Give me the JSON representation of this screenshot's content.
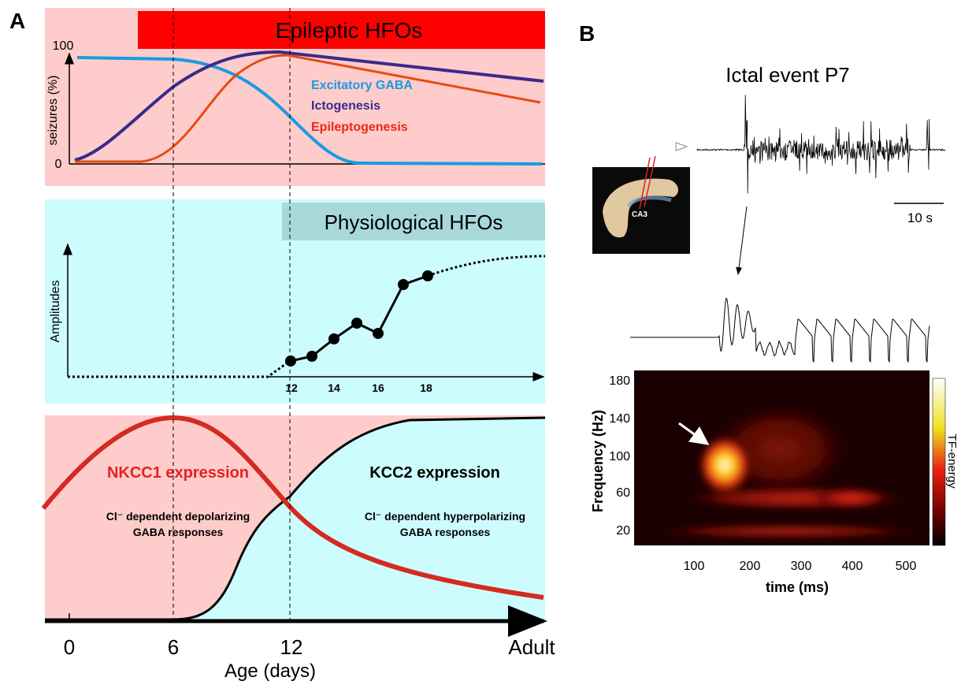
{
  "panel_a": {
    "label": "A",
    "epileptic": {
      "title": "Epileptic HFOs",
      "y_label": "seizures  (%)",
      "y_ticks": [
        "100",
        "0"
      ],
      "legend": [
        "Excitatory GABA",
        "Ictogenesis",
        "Epileptogenesis"
      ]
    },
    "physiological": {
      "title": "Physiological HFOs",
      "y_label": "Amplitudes",
      "x_ticks": [
        "12",
        "14",
        "16",
        "18"
      ]
    },
    "chloride": {
      "nkcc1": "NKCC1 expression",
      "nkcc1_desc": [
        "Cl⁻ dependent depolarizing",
        "GABA responses"
      ],
      "kcc2": "KCC2 expression",
      "kcc2_desc": [
        "Cl⁻ dependent hyperpolarizing",
        "GABA responses"
      ]
    },
    "x_ticks": [
      "0",
      "6",
      "12",
      "Adult"
    ],
    "x_label": "Age (days)"
  },
  "panel_b": {
    "label": "B",
    "title": "Ictal event P7",
    "slice_label": "CA3",
    "scale_bar": "10 s",
    "y_label": "Frequency (Hz)",
    "y_ticks": [
      "180",
      "140",
      "100",
      "60",
      "20"
    ],
    "x_ticks": [
      "100",
      "200",
      "300",
      "400",
      "500"
    ],
    "x_label": "time (ms)",
    "colorbar_label": "TF-energy"
  }
}
